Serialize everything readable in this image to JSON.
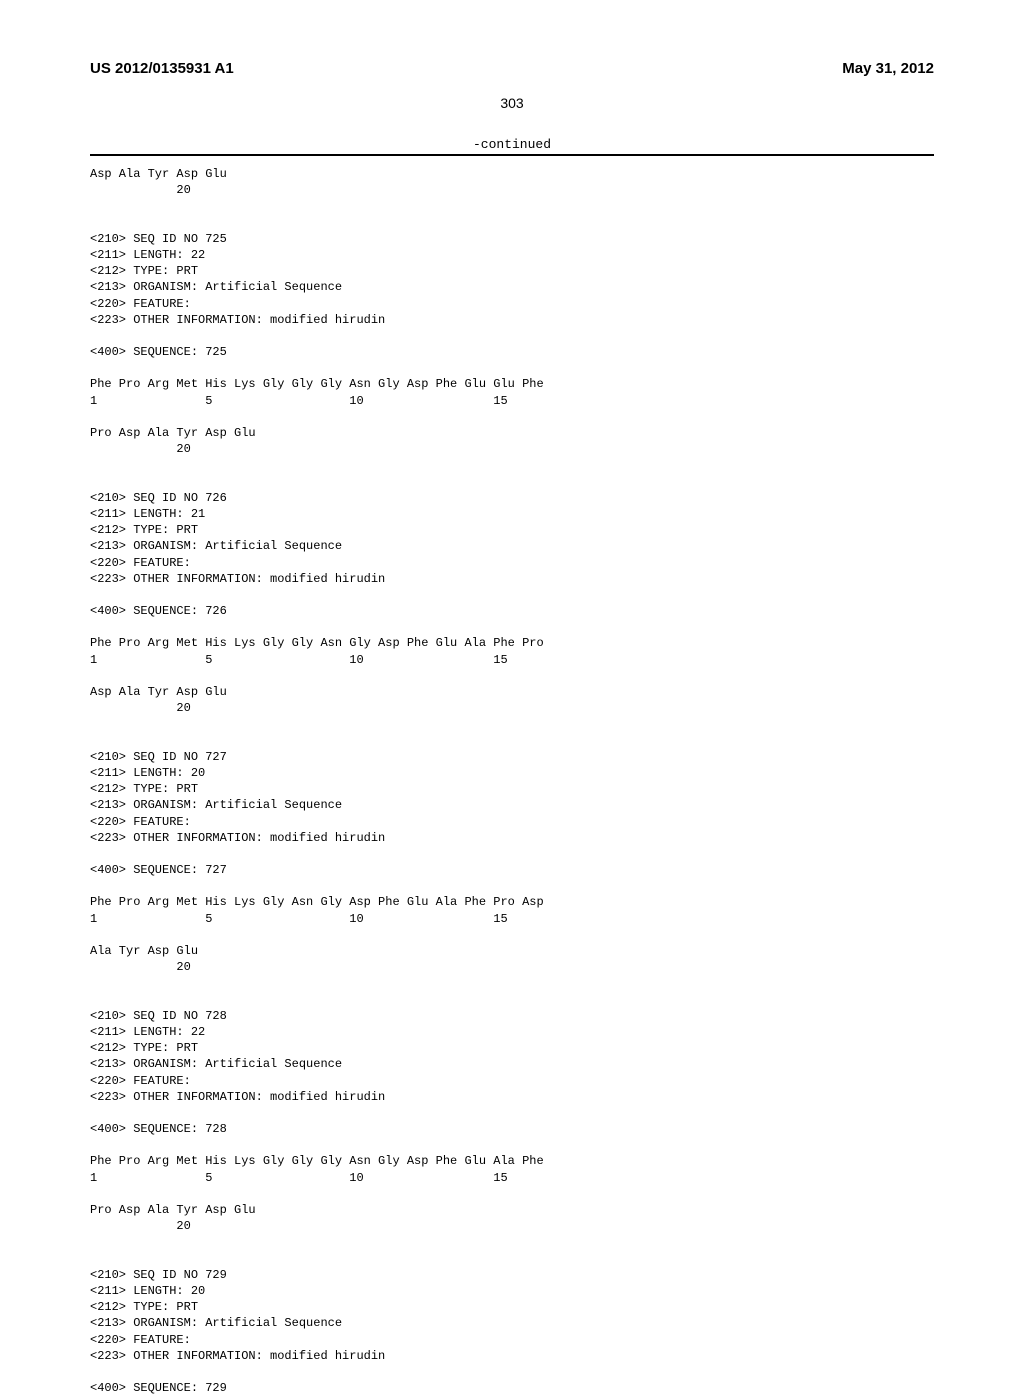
{
  "header": {
    "pub_number": "US 2012/0135931 A1",
    "pub_date": "May 31, 2012"
  },
  "page_number": "303",
  "continued_label": "-continued",
  "sequence_text": "Asp Ala Tyr Asp Glu\n            20\n\n\n<210> SEQ ID NO 725\n<211> LENGTH: 22\n<212> TYPE: PRT\n<213> ORGANISM: Artificial Sequence\n<220> FEATURE:\n<223> OTHER INFORMATION: modified hirudin\n\n<400> SEQUENCE: 725\n\nPhe Pro Arg Met His Lys Gly Gly Gly Asn Gly Asp Phe Glu Glu Phe\n1               5                   10                  15\n\nPro Asp Ala Tyr Asp Glu\n            20\n\n\n<210> SEQ ID NO 726\n<211> LENGTH: 21\n<212> TYPE: PRT\n<213> ORGANISM: Artificial Sequence\n<220> FEATURE:\n<223> OTHER INFORMATION: modified hirudin\n\n<400> SEQUENCE: 726\n\nPhe Pro Arg Met His Lys Gly Gly Asn Gly Asp Phe Glu Ala Phe Pro\n1               5                   10                  15\n\nAsp Ala Tyr Asp Glu\n            20\n\n\n<210> SEQ ID NO 727\n<211> LENGTH: 20\n<212> TYPE: PRT\n<213> ORGANISM: Artificial Sequence\n<220> FEATURE:\n<223> OTHER INFORMATION: modified hirudin\n\n<400> SEQUENCE: 727\n\nPhe Pro Arg Met His Lys Gly Asn Gly Asp Phe Glu Ala Phe Pro Asp\n1               5                   10                  15\n\nAla Tyr Asp Glu\n            20\n\n\n<210> SEQ ID NO 728\n<211> LENGTH: 22\n<212> TYPE: PRT\n<213> ORGANISM: Artificial Sequence\n<220> FEATURE:\n<223> OTHER INFORMATION: modified hirudin\n\n<400> SEQUENCE: 728\n\nPhe Pro Arg Met His Lys Gly Gly Gly Asn Gly Asp Phe Glu Ala Phe\n1               5                   10                  15\n\nPro Asp Ala Tyr Asp Glu\n            20\n\n\n<210> SEQ ID NO 729\n<211> LENGTH: 20\n<212> TYPE: PRT\n<213> ORGANISM: Artificial Sequence\n<220> FEATURE:\n<223> OTHER INFORMATION: modified hirudin\n\n<400> SEQUENCE: 729"
}
